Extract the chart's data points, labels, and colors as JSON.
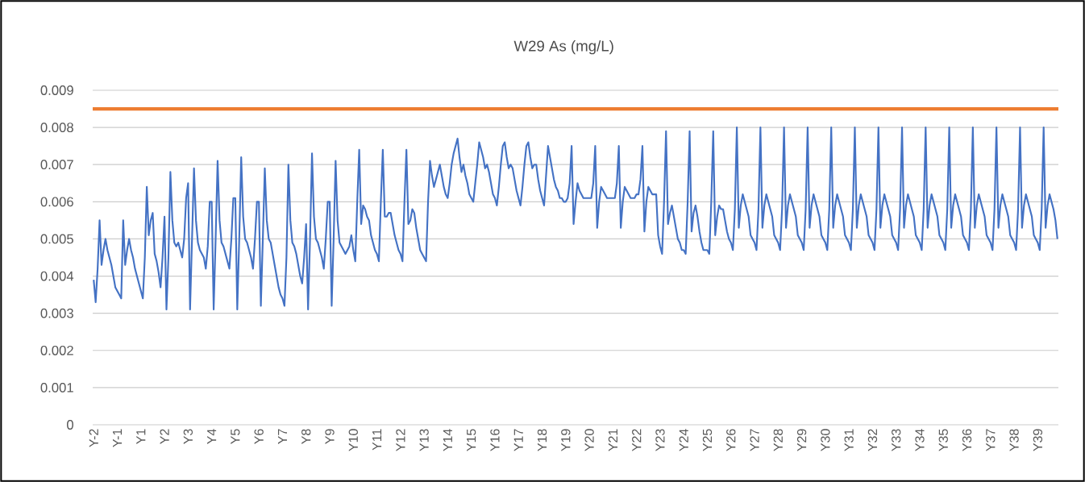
{
  "chart_data": {
    "type": "line",
    "title": "W29  As (mg/L)",
    "categories": [
      "Y-2",
      null,
      null,
      null,
      null,
      null,
      null,
      null,
      null,
      null,
      null,
      null,
      "Y-1",
      null,
      null,
      null,
      null,
      null,
      null,
      null,
      null,
      null,
      null,
      null,
      "Y1",
      null,
      null,
      null,
      null,
      null,
      null,
      null,
      null,
      null,
      null,
      null,
      "Y2",
      null,
      null,
      null,
      null,
      null,
      null,
      null,
      null,
      null,
      null,
      null,
      "Y3",
      null,
      null,
      null,
      null,
      null,
      null,
      null,
      null,
      null,
      null,
      null,
      "Y4",
      null,
      null,
      null,
      null,
      null,
      null,
      null,
      null,
      null,
      null,
      null,
      "Y5",
      null,
      null,
      null,
      null,
      null,
      null,
      null,
      null,
      null,
      null,
      null,
      "Y6",
      null,
      null,
      null,
      null,
      null,
      null,
      null,
      null,
      null,
      null,
      null,
      "Y7",
      null,
      null,
      null,
      null,
      null,
      null,
      null,
      null,
      null,
      null,
      null,
      "Y8",
      null,
      null,
      null,
      null,
      null,
      null,
      null,
      null,
      null,
      null,
      null,
      "Y9",
      null,
      null,
      null,
      null,
      null,
      null,
      null,
      null,
      null,
      null,
      null,
      "Y10",
      null,
      null,
      null,
      null,
      null,
      null,
      null,
      null,
      null,
      null,
      null,
      "Y11",
      null,
      null,
      null,
      null,
      null,
      null,
      null,
      null,
      null,
      null,
      null,
      "Y12",
      null,
      null,
      null,
      null,
      null,
      null,
      null,
      null,
      null,
      null,
      null,
      "Y13",
      null,
      null,
      null,
      null,
      null,
      null,
      null,
      null,
      null,
      null,
      null,
      "Y14",
      null,
      null,
      null,
      null,
      null,
      null,
      null,
      null,
      null,
      null,
      null,
      "Y15",
      null,
      null,
      null,
      null,
      null,
      null,
      null,
      null,
      null,
      null,
      null,
      "Y16",
      null,
      null,
      null,
      null,
      null,
      null,
      null,
      null,
      null,
      null,
      null,
      "Y17",
      null,
      null,
      null,
      null,
      null,
      null,
      null,
      null,
      null,
      null,
      null,
      "Y18",
      null,
      null,
      null,
      null,
      null,
      null,
      null,
      null,
      null,
      null,
      null,
      "Y19",
      null,
      null,
      null,
      null,
      null,
      null,
      null,
      null,
      null,
      null,
      null,
      "Y20",
      null,
      null,
      null,
      null,
      null,
      null,
      null,
      null,
      null,
      null,
      null,
      "Y21",
      null,
      null,
      null,
      null,
      null,
      null,
      null,
      null,
      null,
      null,
      null,
      "Y22",
      null,
      null,
      null,
      null,
      null,
      null,
      null,
      null,
      null,
      null,
      null,
      "Y23",
      null,
      null,
      null,
      null,
      null,
      null,
      null,
      null,
      null,
      null,
      null,
      "Y24",
      null,
      null,
      null,
      null,
      null,
      null,
      null,
      null,
      null,
      null,
      null,
      "Y25",
      null,
      null,
      null,
      null,
      null,
      null,
      null,
      null,
      null,
      null,
      null,
      "Y26",
      null,
      null,
      null,
      null,
      null,
      null,
      null,
      null,
      null,
      null,
      null,
      "Y27",
      null,
      null,
      null,
      null,
      null,
      null,
      null,
      null,
      null,
      null,
      null,
      "Y28",
      null,
      null,
      null,
      null,
      null,
      null,
      null,
      null,
      null,
      null,
      null,
      "Y29",
      null,
      null,
      null,
      null,
      null,
      null,
      null,
      null,
      null,
      null,
      null,
      "Y30",
      null,
      null,
      null,
      null,
      null,
      null,
      null,
      null,
      null,
      null,
      null,
      "Y31",
      null,
      null,
      null,
      null,
      null,
      null,
      null,
      null,
      null,
      null,
      null,
      "Y32",
      null,
      null,
      null,
      null,
      null,
      null,
      null,
      null,
      null,
      null,
      null,
      "Y33",
      null,
      null,
      null,
      null,
      null,
      null,
      null,
      null,
      null,
      null,
      null,
      "Y34",
      null,
      null,
      null,
      null,
      null,
      null,
      null,
      null,
      null,
      null,
      null,
      "Y35",
      null,
      null,
      null,
      null,
      null,
      null,
      null,
      null,
      null,
      null,
      null,
      "Y36",
      null,
      null,
      null,
      null,
      null,
      null,
      null,
      null,
      null,
      null,
      null,
      "Y37",
      null,
      null,
      null,
      null,
      null,
      null,
      null,
      null,
      null,
      null,
      null,
      "Y38",
      null,
      null,
      null,
      null,
      null,
      null,
      null,
      null,
      null,
      null,
      null,
      "Y39",
      null,
      null,
      null,
      null,
      null,
      null,
      null,
      null,
      null,
      null
    ],
    "ylim": [
      0,
      0.009
    ],
    "yticks": [
      0,
      0.001,
      0.002,
      0.003,
      0.004,
      0.005,
      0.006,
      0.007,
      0.008,
      0.009
    ],
    "grid": "y",
    "line_style": "solid",
    "marker": "none",
    "ref_lines": [
      {
        "axis": "y",
        "value": 0.0085,
        "color": "#ed7d31"
      }
    ],
    "series": [
      {
        "color": "#4472c4",
        "values": [
          0.0039,
          0.0033,
          0.0042,
          0.0055,
          0.0043,
          0.0047,
          0.005,
          0.0047,
          0.0045,
          0.0043,
          0.004,
          0.0037,
          0.0036,
          0.0035,
          0.0034,
          0.0055,
          0.0043,
          0.0047,
          0.005,
          0.0047,
          0.0045,
          0.0042,
          0.004,
          0.0038,
          0.0036,
          0.0034,
          0.0045,
          0.0064,
          0.0051,
          0.0055,
          0.0057,
          0.0046,
          0.0044,
          0.0041,
          0.0037,
          0.0045,
          0.0056,
          0.0031,
          0.0045,
          0.0068,
          0.0055,
          0.0049,
          0.0048,
          0.0049,
          0.0047,
          0.0045,
          0.005,
          0.0061,
          0.0065,
          0.0031,
          0.005,
          0.0069,
          0.0055,
          0.0049,
          0.0047,
          0.0046,
          0.0045,
          0.0042,
          0.0048,
          0.006,
          0.006,
          0.0031,
          0.005,
          0.0071,
          0.0055,
          0.0049,
          0.0048,
          0.0046,
          0.0044,
          0.0042,
          0.005,
          0.0061,
          0.0061,
          0.0031,
          0.005,
          0.0072,
          0.0056,
          0.005,
          0.0049,
          0.0047,
          0.0045,
          0.0042,
          0.005,
          0.006,
          0.006,
          0.0032,
          0.005,
          0.0069,
          0.0055,
          0.005,
          0.0049,
          0.0046,
          0.0043,
          0.004,
          0.0037,
          0.0035,
          0.0034,
          0.0032,
          0.0045,
          0.007,
          0.0055,
          0.0049,
          0.0048,
          0.0046,
          0.0043,
          0.004,
          0.0038,
          0.0045,
          0.0054,
          0.0031,
          0.005,
          0.0073,
          0.0056,
          0.005,
          0.0049,
          0.0047,
          0.0045,
          0.0042,
          0.005,
          0.006,
          0.006,
          0.0032,
          0.005,
          0.0071,
          0.0055,
          0.0049,
          0.0048,
          0.0047,
          0.0046,
          0.0047,
          0.0048,
          0.0051,
          0.0047,
          0.0044,
          0.006,
          0.0074,
          0.0054,
          0.0059,
          0.0058,
          0.0056,
          0.0055,
          0.0051,
          0.0049,
          0.0047,
          0.0046,
          0.0044,
          0.006,
          0.0074,
          0.0056,
          0.0056,
          0.0057,
          0.0057,
          0.0054,
          0.0051,
          0.0049,
          0.0047,
          0.0046,
          0.0044,
          0.006,
          0.0074,
          0.0054,
          0.0055,
          0.0058,
          0.0057,
          0.0053,
          0.005,
          0.0047,
          0.0046,
          0.0045,
          0.0044,
          0.006,
          0.0071,
          0.0067,
          0.0064,
          0.0066,
          0.0068,
          0.007,
          0.0067,
          0.0064,
          0.0062,
          0.0061,
          0.0065,
          0.007,
          0.0073,
          0.0075,
          0.0077,
          0.0072,
          0.0068,
          0.007,
          0.0067,
          0.0065,
          0.0062,
          0.0061,
          0.006,
          0.0065,
          0.007,
          0.0076,
          0.0074,
          0.0072,
          0.0069,
          0.007,
          0.0068,
          0.0065,
          0.0062,
          0.0061,
          0.0059,
          0.0064,
          0.007,
          0.0075,
          0.0076,
          0.0072,
          0.0069,
          0.007,
          0.0069,
          0.0066,
          0.0063,
          0.0061,
          0.0059,
          0.0064,
          0.007,
          0.0075,
          0.0076,
          0.0072,
          0.0069,
          0.007,
          0.007,
          0.0066,
          0.0063,
          0.0061,
          0.0059,
          0.0067,
          0.0075,
          0.0072,
          0.0069,
          0.0066,
          0.0064,
          0.0063,
          0.0061,
          0.0061,
          0.006,
          0.006,
          0.0061,
          0.0065,
          0.0075,
          0.0054,
          0.006,
          0.0065,
          0.0063,
          0.0062,
          0.0061,
          0.0061,
          0.0061,
          0.0061,
          0.0061,
          0.0065,
          0.0075,
          0.0053,
          0.006,
          0.0064,
          0.0063,
          0.0062,
          0.0061,
          0.0061,
          0.0061,
          0.0061,
          0.0061,
          0.0065,
          0.0075,
          0.0053,
          0.006,
          0.0064,
          0.0063,
          0.0062,
          0.0061,
          0.0061,
          0.0061,
          0.0062,
          0.0062,
          0.0066,
          0.0075,
          0.0052,
          0.006,
          0.0064,
          0.0063,
          0.0062,
          0.0062,
          0.0062,
          0.0051,
          0.0048,
          0.0046,
          0.006,
          0.0079,
          0.0054,
          0.0057,
          0.0059,
          0.0056,
          0.0053,
          0.005,
          0.0049,
          0.0047,
          0.0047,
          0.0046,
          0.006,
          0.0079,
          0.0052,
          0.0057,
          0.0059,
          0.0056,
          0.0052,
          0.0049,
          0.0047,
          0.0047,
          0.0047,
          0.0046,
          0.006,
          0.0079,
          0.0051,
          0.0056,
          0.0059,
          0.0058,
          0.0058,
          0.0055,
          0.0052,
          0.005,
          0.0049,
          0.0047,
          0.0058,
          0.008,
          0.0053,
          0.0059,
          0.0062,
          0.006,
          0.0058,
          0.0056,
          0.0051,
          0.005,
          0.0049,
          0.0047,
          0.0058,
          0.008,
          0.0053,
          0.0059,
          0.0062,
          0.006,
          0.0058,
          0.0056,
          0.0051,
          0.005,
          0.0049,
          0.0047,
          0.0058,
          0.008,
          0.0053,
          0.0059,
          0.0062,
          0.006,
          0.0058,
          0.0056,
          0.0051,
          0.005,
          0.0049,
          0.0047,
          0.0058,
          0.008,
          0.0053,
          0.0059,
          0.0062,
          0.006,
          0.0058,
          0.0056,
          0.0051,
          0.005,
          0.0049,
          0.0047,
          0.0058,
          0.008,
          0.0053,
          0.0059,
          0.0062,
          0.006,
          0.0058,
          0.0056,
          0.0051,
          0.005,
          0.0049,
          0.0047,
          0.0058,
          0.008,
          0.0053,
          0.0059,
          0.0062,
          0.006,
          0.0058,
          0.0056,
          0.0051,
          0.005,
          0.0049,
          0.0047,
          0.0058,
          0.008,
          0.0053,
          0.0059,
          0.0062,
          0.006,
          0.0058,
          0.0056,
          0.0051,
          0.005,
          0.0049,
          0.0047,
          0.0058,
          0.008,
          0.0053,
          0.0059,
          0.0062,
          0.006,
          0.0058,
          0.0056,
          0.0051,
          0.005,
          0.0049,
          0.0047,
          0.0058,
          0.008,
          0.0053,
          0.0059,
          0.0062,
          0.006,
          0.0058,
          0.0056,
          0.0051,
          0.005,
          0.0049,
          0.0047,
          0.0058,
          0.008,
          0.0053,
          0.0059,
          0.0062,
          0.006,
          0.0058,
          0.0056,
          0.0051,
          0.005,
          0.0049,
          0.0047,
          0.0058,
          0.008,
          0.0053,
          0.0059,
          0.0062,
          0.006,
          0.0058,
          0.0056,
          0.0051,
          0.005,
          0.0049,
          0.0047,
          0.0058,
          0.008,
          0.0053,
          0.0059,
          0.0062,
          0.006,
          0.0058,
          0.0056,
          0.0051,
          0.005,
          0.0049,
          0.0047,
          0.0058,
          0.008,
          0.0053,
          0.0059,
          0.0062,
          0.006,
          0.0058,
          0.0056,
          0.0051,
          0.005,
          0.0049,
          0.0047,
          0.0058,
          0.008,
          0.0053,
          0.0059,
          0.0062,
          0.006,
          0.0058,
          0.0055,
          0.005
        ]
      }
    ]
  }
}
